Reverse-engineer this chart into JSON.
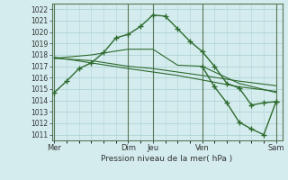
{
  "background_color": "#d4ecee",
  "grid_color": "#b0d4d4",
  "line_color": "#2d6a2d",
  "marker_color": "#2d6a2d",
  "xlabel_text": "Pression niveau de la mer( hPa )",
  "xtick_labels": [
    "Mer",
    "Dim",
    "Jeu",
    "Ven",
    "Sam"
  ],
  "xtick_positions": [
    0,
    6,
    8,
    12,
    18
  ],
  "vline_positions": [
    0,
    6,
    8,
    12,
    18
  ],
  "ylim": [
    1010.5,
    1022.5
  ],
  "xlim": [
    -0.2,
    18.5
  ],
  "ytick_values": [
    1011,
    1012,
    1013,
    1014,
    1015,
    1016,
    1017,
    1018,
    1019,
    1020,
    1021,
    1022
  ],
  "series": [
    {
      "x": [
        0,
        1,
        2,
        3,
        4,
        5,
        6,
        7,
        8,
        9,
        10,
        11,
        12,
        13,
        14,
        15,
        16,
        17,
        18
      ],
      "y": [
        1014.7,
        1015.7,
        1016.8,
        1017.3,
        1018.2,
        1019.5,
        1019.8,
        1020.5,
        1021.5,
        1021.4,
        1020.3,
        1019.2,
        1018.3,
        1017.0,
        1015.5,
        1015.1,
        1013.6,
        1013.8,
        1013.9
      ],
      "has_markers": true,
      "linewidth": 1.0,
      "markersize": 4
    },
    {
      "x": [
        0,
        3,
        6,
        8,
        10,
        12,
        15,
        18
      ],
      "y": [
        1017.7,
        1018.0,
        1018.5,
        1018.5,
        1017.1,
        1017.0,
        1015.5,
        1014.7
      ],
      "has_markers": false,
      "linewidth": 0.8,
      "markersize": 0
    },
    {
      "x": [
        0,
        3,
        6,
        8,
        10,
        12,
        15,
        18
      ],
      "y": [
        1017.7,
        1017.5,
        1017.0,
        1016.8,
        1016.5,
        1016.2,
        1015.7,
        1015.3
      ],
      "has_markers": false,
      "linewidth": 0.8,
      "markersize": 0
    },
    {
      "x": [
        0,
        3,
        6,
        8,
        10,
        12,
        15,
        18
      ],
      "y": [
        1017.8,
        1017.3,
        1016.8,
        1016.5,
        1016.2,
        1015.8,
        1015.2,
        1014.8
      ],
      "has_markers": false,
      "linewidth": 0.8,
      "markersize": 0
    },
    {
      "x": [
        12,
        13,
        14,
        15,
        16,
        17,
        18
      ],
      "y": [
        1017.0,
        1015.2,
        1013.8,
        1012.1,
        1011.5,
        1011.0,
        1013.9
      ],
      "has_markers": true,
      "linewidth": 1.0,
      "markersize": 4
    }
  ]
}
